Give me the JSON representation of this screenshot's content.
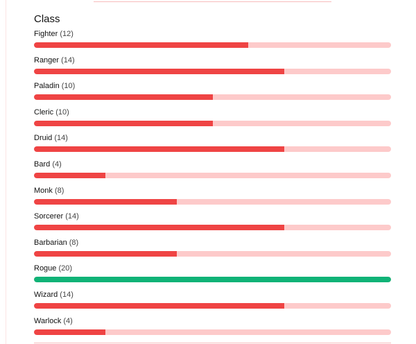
{
  "section": {
    "title": "Class",
    "max_count": 20,
    "items": [
      {
        "name": "Fighter",
        "count": "(12)",
        "value": 12
      },
      {
        "name": "Ranger",
        "count": "(14)",
        "value": 14
      },
      {
        "name": "Paladin",
        "count": "(10)",
        "value": 10
      },
      {
        "name": "Cleric",
        "count": "(10)",
        "value": 10
      },
      {
        "name": "Druid",
        "count": "(14)",
        "value": 14
      },
      {
        "name": "Bard",
        "count": "(4)",
        "value": 4
      },
      {
        "name": "Monk",
        "count": "(8)",
        "value": 8
      },
      {
        "name": "Sorcerer",
        "count": "(14)",
        "value": 14
      },
      {
        "name": "Barbarian",
        "count": "(8)",
        "value": 8
      },
      {
        "name": "Rogue",
        "count": "(20)",
        "value": 20
      },
      {
        "name": "Wizard",
        "count": "(14)",
        "value": 14
      },
      {
        "name": "Warlock",
        "count": "(4)",
        "value": 4
      }
    ]
  },
  "colors": {
    "bar_fill": "#ef4444",
    "bar_track": "#fdcaca",
    "bar_leader": "#10b377"
  }
}
